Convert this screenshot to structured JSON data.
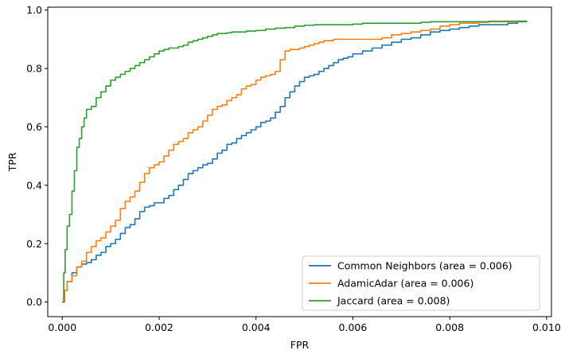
{
  "chart_data": {
    "type": "line",
    "title": "",
    "xlabel": "FPR",
    "ylabel": "TPR",
    "xlim": [
      -0.0003,
      0.0101
    ],
    "ylim": [
      -0.05,
      1.01
    ],
    "xticks": [
      0.0,
      0.002,
      0.004,
      0.006,
      0.008,
      0.01
    ],
    "xtick_labels": [
      "0.000",
      "0.002",
      "0.004",
      "0.006",
      "0.008",
      "0.010"
    ],
    "yticks": [
      0.0,
      0.2,
      0.4,
      0.6,
      0.8,
      1.0
    ],
    "ytick_labels": [
      "0.0",
      "0.2",
      "0.4",
      "0.6",
      "0.8",
      "1.0"
    ],
    "grid": false,
    "legend_position": "lower-right",
    "series": [
      {
        "name": "Common Neighbors (area = 0.006)",
        "color": "#1f77b4",
        "x": [
          0.0,
          5e-05,
          0.0001,
          0.0002,
          0.0003,
          0.0004,
          0.0005,
          0.0006,
          0.0007,
          0.0008,
          0.0009,
          0.001,
          0.0011,
          0.0012,
          0.0013,
          0.0014,
          0.0015,
          0.0016,
          0.0017,
          0.0018,
          0.0019,
          0.002,
          0.0021,
          0.0022,
          0.0023,
          0.0024,
          0.0025,
          0.0026,
          0.0027,
          0.0028,
          0.0029,
          0.003,
          0.0031,
          0.0032,
          0.0033,
          0.0034,
          0.0035,
          0.0036,
          0.0037,
          0.0038,
          0.0039,
          0.004,
          0.0041,
          0.0042,
          0.0043,
          0.0044,
          0.0045,
          0.0046,
          0.0047,
          0.0048,
          0.0049,
          0.005,
          0.0051,
          0.0052,
          0.0053,
          0.0054,
          0.0055,
          0.0056,
          0.0057,
          0.0058,
          0.0059,
          0.006,
          0.0062,
          0.0064,
          0.0066,
          0.0068,
          0.007,
          0.0072,
          0.0074,
          0.0076,
          0.0078,
          0.008,
          0.0082,
          0.0084,
          0.0086,
          0.0088,
          0.009,
          0.0092,
          0.0094,
          0.0096
        ],
        "y": [
          0.0,
          0.04,
          0.07,
          0.1,
          0.12,
          0.13,
          0.135,
          0.145,
          0.16,
          0.17,
          0.19,
          0.2,
          0.215,
          0.235,
          0.255,
          0.265,
          0.285,
          0.31,
          0.325,
          0.33,
          0.34,
          0.34,
          0.355,
          0.365,
          0.385,
          0.4,
          0.42,
          0.44,
          0.45,
          0.46,
          0.47,
          0.475,
          0.49,
          0.51,
          0.52,
          0.54,
          0.545,
          0.56,
          0.57,
          0.58,
          0.59,
          0.6,
          0.615,
          0.62,
          0.63,
          0.65,
          0.67,
          0.7,
          0.72,
          0.74,
          0.755,
          0.77,
          0.775,
          0.78,
          0.79,
          0.8,
          0.81,
          0.82,
          0.83,
          0.835,
          0.84,
          0.85,
          0.86,
          0.87,
          0.88,
          0.89,
          0.9,
          0.905,
          0.915,
          0.925,
          0.93,
          0.935,
          0.94,
          0.945,
          0.95,
          0.95,
          0.95,
          0.955,
          0.96,
          0.96
        ]
      },
      {
        "name": "AdamicAdar (area = 0.006)",
        "color": "#ff7f0e",
        "x": [
          0.0,
          5e-05,
          0.0001,
          0.0002,
          0.0003,
          0.0004,
          0.0005,
          0.0006,
          0.0007,
          0.0008,
          0.0009,
          0.001,
          0.0011,
          0.0012,
          0.0013,
          0.0014,
          0.0015,
          0.0016,
          0.0017,
          0.0018,
          0.0019,
          0.002,
          0.0021,
          0.0022,
          0.0023,
          0.0024,
          0.0025,
          0.0026,
          0.0027,
          0.0028,
          0.0029,
          0.003,
          0.0031,
          0.0032,
          0.0033,
          0.0034,
          0.0035,
          0.0036,
          0.0037,
          0.0038,
          0.0039,
          0.004,
          0.0041,
          0.0042,
          0.0043,
          0.0044,
          0.0045,
          0.0046,
          0.0047,
          0.0048,
          0.0049,
          0.005,
          0.0051,
          0.0052,
          0.0053,
          0.0054,
          0.0056,
          0.0058,
          0.006,
          0.0062,
          0.0064,
          0.0066,
          0.0068,
          0.007,
          0.0072,
          0.0074,
          0.0076,
          0.0078,
          0.008,
          0.0082,
          0.0084,
          0.0086,
          0.0088,
          0.009,
          0.0092,
          0.0094,
          0.0096
        ],
        "y": [
          0.0,
          0.04,
          0.07,
          0.09,
          0.12,
          0.14,
          0.17,
          0.19,
          0.21,
          0.22,
          0.24,
          0.26,
          0.28,
          0.32,
          0.345,
          0.36,
          0.38,
          0.41,
          0.44,
          0.46,
          0.47,
          0.48,
          0.5,
          0.52,
          0.54,
          0.55,
          0.56,
          0.58,
          0.59,
          0.6,
          0.62,
          0.64,
          0.66,
          0.67,
          0.675,
          0.69,
          0.7,
          0.71,
          0.73,
          0.74,
          0.745,
          0.76,
          0.77,
          0.775,
          0.78,
          0.79,
          0.83,
          0.86,
          0.865,
          0.865,
          0.87,
          0.875,
          0.88,
          0.885,
          0.89,
          0.895,
          0.9,
          0.9,
          0.9,
          0.9,
          0.9,
          0.905,
          0.915,
          0.92,
          0.925,
          0.93,
          0.935,
          0.945,
          0.95,
          0.955,
          0.955,
          0.958,
          0.96,
          0.96,
          0.96,
          0.962,
          0.962
        ]
      },
      {
        "name": "Jaccard (area = 0.008)",
        "color": "#2ca02c",
        "x": [
          0.0,
          3e-05,
          6e-05,
          0.0001,
          0.00015,
          0.0002,
          0.00025,
          0.0003,
          0.00035,
          0.0004,
          0.00045,
          0.0005,
          0.0006,
          0.0007,
          0.0008,
          0.0009,
          0.001,
          0.0011,
          0.0012,
          0.0013,
          0.0014,
          0.0015,
          0.0016,
          0.0017,
          0.0018,
          0.0019,
          0.002,
          0.0021,
          0.0022,
          0.0023,
          0.0024,
          0.0025,
          0.0026,
          0.0027,
          0.0028,
          0.0029,
          0.003,
          0.0031,
          0.0032,
          0.0033,
          0.0034,
          0.0035,
          0.0036,
          0.0038,
          0.004,
          0.0042,
          0.0044,
          0.0046,
          0.0048,
          0.005,
          0.0052,
          0.0054,
          0.0056,
          0.0058,
          0.006,
          0.0062,
          0.0064,
          0.0066,
          0.0068,
          0.007,
          0.0072,
          0.0074,
          0.0076,
          0.0078,
          0.008,
          0.0082,
          0.0084,
          0.0086,
          0.0088,
          0.009,
          0.0092,
          0.0094,
          0.0096
        ],
        "y": [
          0.0,
          0.1,
          0.18,
          0.26,
          0.3,
          0.38,
          0.45,
          0.53,
          0.56,
          0.6,
          0.63,
          0.66,
          0.67,
          0.7,
          0.72,
          0.74,
          0.76,
          0.77,
          0.78,
          0.79,
          0.8,
          0.81,
          0.82,
          0.83,
          0.84,
          0.85,
          0.86,
          0.865,
          0.87,
          0.87,
          0.875,
          0.88,
          0.89,
          0.895,
          0.9,
          0.905,
          0.91,
          0.915,
          0.92,
          0.92,
          0.922,
          0.925,
          0.925,
          0.928,
          0.93,
          0.935,
          0.938,
          0.94,
          0.945,
          0.948,
          0.95,
          0.95,
          0.95,
          0.95,
          0.952,
          0.955,
          0.955,
          0.955,
          0.955,
          0.955,
          0.955,
          0.958,
          0.96,
          0.96,
          0.96,
          0.96,
          0.96,
          0.96,
          0.962,
          0.962,
          0.962,
          0.962,
          0.962
        ]
      }
    ]
  }
}
